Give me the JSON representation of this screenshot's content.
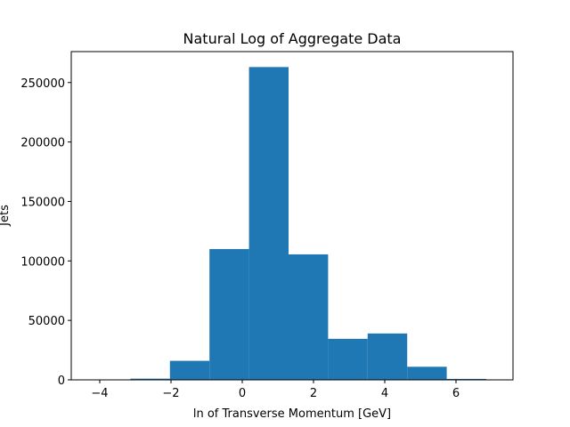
{
  "chart_data": {
    "type": "bar",
    "title": "Natural Log of Aggregate Data",
    "xlabel": "ln of Transverse Momentum [GeV]",
    "ylabel": "Jets",
    "xlim": [
      -4.8,
      7.6
    ],
    "ylim": [
      0,
      276000
    ],
    "xticks": [
      -4,
      -2,
      0,
      2,
      4,
      6
    ],
    "yticks": [
      0,
      50000,
      100000,
      150000,
      200000,
      250000
    ],
    "xtick_labels": [
      "−4",
      "−2",
      "0",
      "2",
      "4",
      "6"
    ],
    "ytick_labels": [
      "0",
      "50000",
      "100000",
      "150000",
      "200000",
      "250000"
    ],
    "bin_edges": [
      -4.25,
      -3.14,
      -2.03,
      -0.92,
      0.19,
      1.3,
      2.41,
      3.52,
      4.63,
      5.74,
      6.85
    ],
    "values": [
      200,
      1000,
      16000,
      110000,
      263000,
      105500,
      34500,
      39000,
      11000,
      800
    ],
    "bar_color": "#1f77b4",
    "grid": false,
    "legend": "none"
  }
}
